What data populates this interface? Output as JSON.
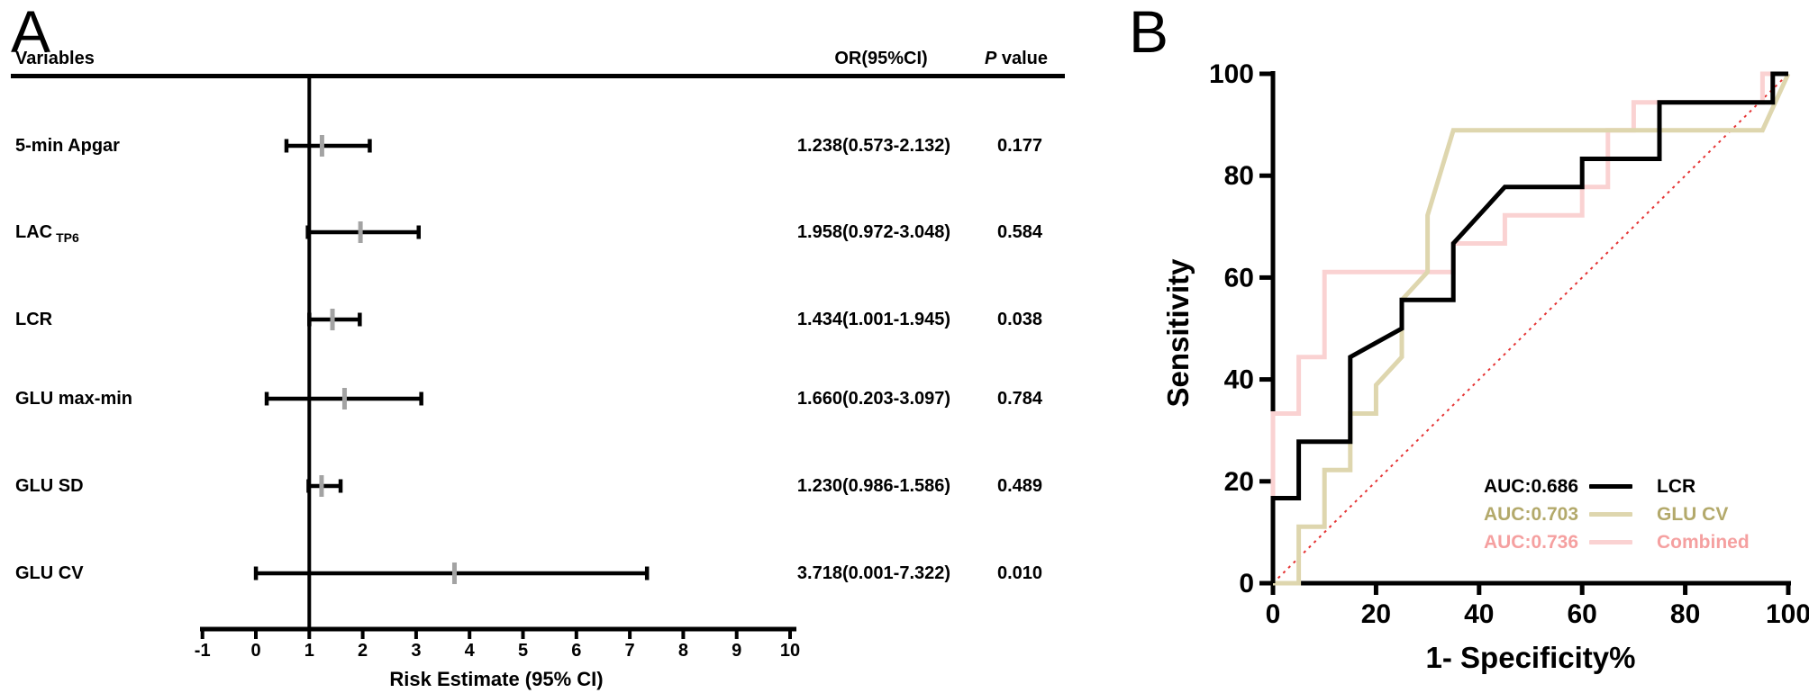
{
  "figure": {
    "background": "#ffffff"
  },
  "panels": {
    "a": {
      "letter": "A",
      "p_italic": "P",
      "p_rest": " value"
    },
    "b": {
      "letter": "B"
    }
  },
  "chart_data": [
    {
      "type": "forest",
      "panel": "A",
      "col_headers": [
        "Variables",
        "OR(95%CI)",
        "P value"
      ],
      "xlabel": "Risk Estimate (95% CI)",
      "x_ticks": [
        -1,
        0,
        1,
        2,
        3,
        4,
        5,
        6,
        7,
        8,
        9,
        10
      ],
      "xlim": [
        -1,
        10
      ],
      "ref_line_x": 1,
      "marker_color": "#a3a3a3",
      "rows": [
        {
          "label": "5-min Apgar",
          "sublabel": "",
          "or": 1.238,
          "ci_low": 0.573,
          "ci_high": 2.132,
          "or_ci_text": "1.238(0.573-2.132)",
          "p_value": "0.177"
        },
        {
          "label": "LAC",
          "sublabel": "TP6",
          "or": 1.958,
          "ci_low": 0.972,
          "ci_high": 3.048,
          "or_ci_text": "1.958(0.972-3.048)",
          "p_value": "0.584"
        },
        {
          "label": "LCR",
          "sublabel": "",
          "or": 1.434,
          "ci_low": 1.001,
          "ci_high": 1.945,
          "or_ci_text": "1.434(1.001-1.945)",
          "p_value": "0.038"
        },
        {
          "label": "GLU max-min",
          "sublabel": "",
          "or": 1.66,
          "ci_low": 0.203,
          "ci_high": 3.097,
          "or_ci_text": "1.660(0.203-3.097)",
          "p_value": "0.784"
        },
        {
          "label": "GLU SD",
          "sublabel": "",
          "or": 1.23,
          "ci_low": 0.986,
          "ci_high": 1.586,
          "or_ci_text": "1.230(0.986-1.586)",
          "p_value": "0.489"
        },
        {
          "label": "GLU CV",
          "sublabel": "",
          "or": 3.718,
          "ci_low": 0.001,
          "ci_high": 7.322,
          "or_ci_text": "3.718(0.001-7.322)",
          "p_value": "0.010"
        }
      ]
    },
    {
      "type": "line",
      "subtype": "roc",
      "panel": "B",
      "xlabel": "1- Specificity%",
      "ylabel": "Sensitivity",
      "xlim": [
        0,
        100
      ],
      "ylim": [
        0,
        100
      ],
      "x_ticks": [
        0,
        20,
        40,
        60,
        80,
        100
      ],
      "y_ticks": [
        0,
        20,
        40,
        60,
        80,
        100
      ],
      "grid": false,
      "legend_position": "bottom-right",
      "diagonal": {
        "color": "#e53434",
        "style": "dotted"
      },
      "series": [
        {
          "name": "LCR",
          "auc_label": "AUC:0.686",
          "auc": 0.686,
          "color": "#000000",
          "label_color": "#000000",
          "points": [
            [
              0,
              0
            ],
            [
              0,
              16.7
            ],
            [
              5,
              16.7
            ],
            [
              5,
              27.8
            ],
            [
              15,
              27.8
            ],
            [
              15,
              44.4
            ],
            [
              25,
              50
            ],
            [
              25,
              55.6
            ],
            [
              35,
              55.6
            ],
            [
              35,
              66.7
            ],
            [
              45,
              77.8
            ],
            [
              60,
              77.8
            ],
            [
              60,
              83.3
            ],
            [
              75,
              83.3
            ],
            [
              75,
              94.4
            ],
            [
              97,
              94.4
            ],
            [
              97,
              100
            ],
            [
              100,
              100
            ]
          ]
        },
        {
          "name": "GLU CV",
          "auc_label": "AUC:0.703",
          "auc": 0.703,
          "color": "#ded6ae",
          "label_color": "#b3a96b",
          "points": [
            [
              0,
              0
            ],
            [
              5,
              0
            ],
            [
              5,
              11.1
            ],
            [
              10,
              11.1
            ],
            [
              10,
              22.2
            ],
            [
              15,
              22.2
            ],
            [
              15,
              33.3
            ],
            [
              20,
              33.3
            ],
            [
              20,
              38.9
            ],
            [
              25,
              44.4
            ],
            [
              25,
              55.6
            ],
            [
              30,
              61.1
            ],
            [
              30,
              72.2
            ],
            [
              35,
              88.9
            ],
            [
              95,
              88.9
            ],
            [
              100,
              100
            ]
          ]
        },
        {
          "name": "Combined",
          "auc_label": "AUC:0.736",
          "auc": 0.736,
          "color": "#fad2d2",
          "label_color": "#f5a0a0",
          "points": [
            [
              0,
              0
            ],
            [
              0,
              33.3
            ],
            [
              5,
              33.3
            ],
            [
              5,
              44.4
            ],
            [
              10,
              44.4
            ],
            [
              10,
              61.1
            ],
            [
              35,
              61.1
            ],
            [
              35,
              66.7
            ],
            [
              45,
              66.7
            ],
            [
              45,
              72.2
            ],
            [
              60,
              72.2
            ],
            [
              60,
              77.8
            ],
            [
              65,
              77.8
            ],
            [
              65,
              88.9
            ],
            [
              70,
              88.9
            ],
            [
              70,
              94.4
            ],
            [
              95,
              94.4
            ],
            [
              95,
              100
            ],
            [
              100,
              100
            ]
          ]
        }
      ]
    }
  ]
}
